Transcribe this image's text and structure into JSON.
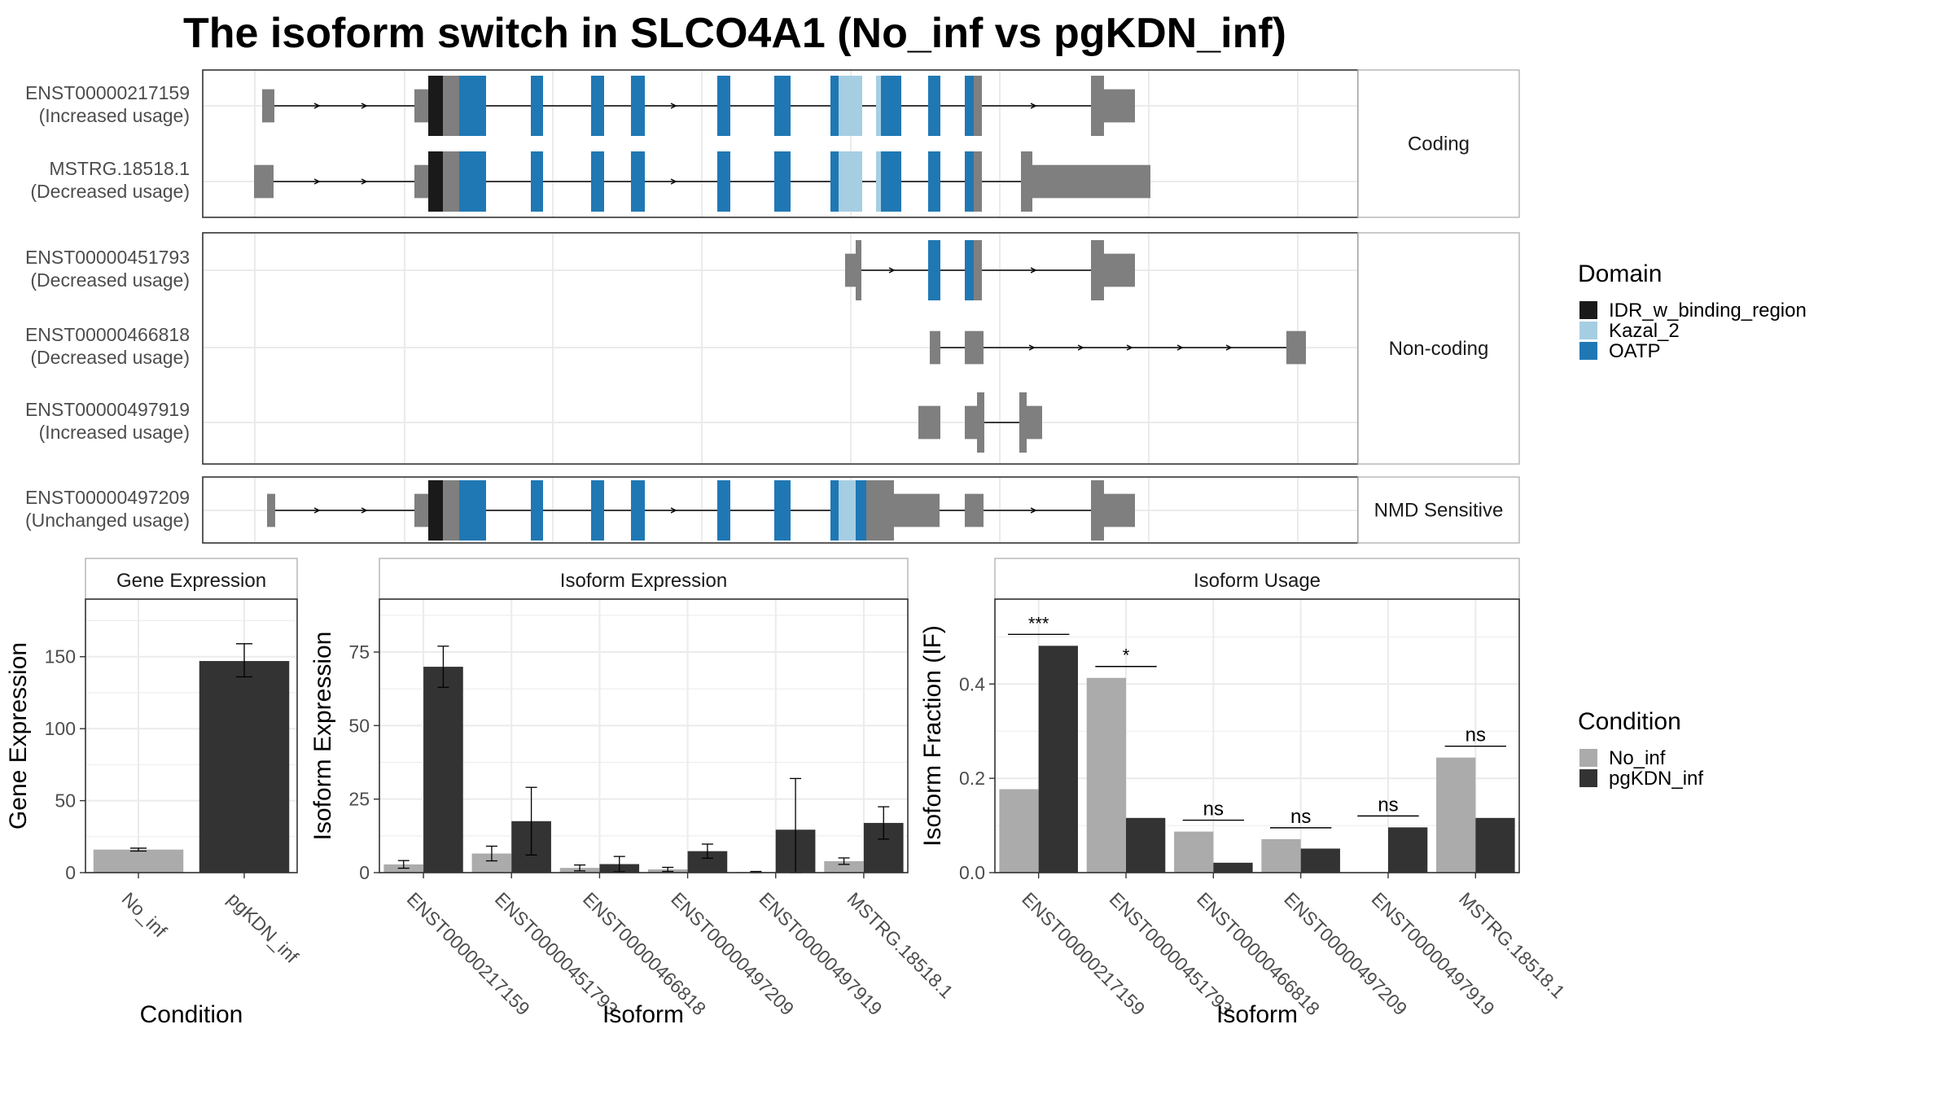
{
  "title": "The isoform switch in SLCO4A1 (No_inf vs pgKDN_inf)",
  "colors": {
    "IDR_w_binding_region": "#1a1a1a",
    "Kazal_2": "#a6cee3",
    "OATP": "#1f78b4",
    "none": "#7f7f7f",
    "No_inf": "#ababab",
    "pgKDN_inf": "#333333",
    "grid": "#ebebeb",
    "strip_bg": "#ffffff"
  },
  "structure": {
    "facets": [
      {
        "label": "Coding",
        "isoforms": [
          {
            "id": "ENST00000217159",
            "usage": "(Increased usage)"
          },
          {
            "id": "MSTRG.18518.1",
            "usage": "(Decreased usage)"
          }
        ]
      },
      {
        "label": "Non-coding",
        "isoforms": [
          {
            "id": "ENST00000451793",
            "usage": "(Decreased usage)"
          },
          {
            "id": "ENST00000466818",
            "usage": "(Decreased usage)"
          },
          {
            "id": "ENST00000497919",
            "usage": "(Increased usage)"
          }
        ]
      },
      {
        "label": "NMD Sensitive",
        "isoforms": [
          {
            "id": "ENST00000497209",
            "usage": "(Unchanged usage)"
          }
        ]
      }
    ],
    "legend_title": "Domain",
    "legend_items": [
      "IDR_w_binding_region",
      "Kazal_2",
      "OATP"
    ]
  },
  "condition_legend": {
    "title": "Condition",
    "items": [
      "No_inf",
      "pgKDN_inf"
    ]
  },
  "chart_data": [
    {
      "type": "bar",
      "strip": "Gene Expression",
      "xlabel": "Condition",
      "ylabel": "Gene Expression",
      "ylim": [
        0,
        190
      ],
      "yticks": [
        0,
        50,
        100,
        150
      ],
      "categories": [
        "No_inf",
        "pgKDN_inf"
      ],
      "values": [
        16,
        147
      ],
      "errors": [
        [
          15,
          17
        ],
        [
          136,
          159
        ]
      ],
      "grid": true
    },
    {
      "type": "bar",
      "strip": "Isoform Expression",
      "xlabel": "Isoform",
      "ylabel": "Isoform Expression",
      "ylim": [
        0,
        93
      ],
      "yticks": [
        0,
        25,
        50,
        75
      ],
      "categories": [
        "ENST00000217159",
        "ENST00000451793",
        "ENST00000466818",
        "ENST00000497209",
        "ENST00000497919",
        "MSTRG.18518.1"
      ],
      "series": [
        {
          "name": "No_inf",
          "values": [
            2.8,
            6.5,
            1.6,
            1.1,
            0.2,
            3.9
          ],
          "errors": [
            [
              1.5,
              4.1
            ],
            [
              4,
              9
            ],
            [
              0.6,
              2.6
            ],
            [
              0.4,
              1.8
            ],
            [
              0,
              0.4
            ],
            [
              2.8,
              5
            ]
          ]
        },
        {
          "name": "pgKDN_inf",
          "values": [
            70,
            17.5,
            2.9,
            7.3,
            14.6,
            16.9
          ],
          "errors": [
            [
              63,
              77
            ],
            [
              6,
              29
            ],
            [
              0.3,
              5.5
            ],
            [
              4.9,
              9.7
            ],
            [
              0,
              32
            ],
            [
              11.4,
              22.4
            ]
          ]
        }
      ],
      "grid": true
    },
    {
      "type": "bar",
      "strip": "Isoform Usage",
      "xlabel": "Isoform",
      "ylabel": "Isoform Fraction (IF)",
      "ylim": [
        0,
        0.58
      ],
      "yticks": [
        0.0,
        0.2,
        0.4
      ],
      "categories": [
        "ENST00000217159",
        "ENST00000451793",
        "ENST00000466818",
        "ENST00000497209",
        "ENST00000497919",
        "MSTRG.18518.1"
      ],
      "series": [
        {
          "name": "No_inf",
          "values": [
            0.177,
            0.413,
            0.087,
            0.071,
            0.0,
            0.244
          ]
        },
        {
          "name": "pgKDN_inf",
          "values": [
            0.481,
            0.116,
            0.021,
            0.051,
            0.096,
            0.116
          ]
        }
      ],
      "significance": [
        "***",
        "*",
        "ns",
        "ns",
        "ns",
        "ns"
      ],
      "grid": true
    }
  ]
}
